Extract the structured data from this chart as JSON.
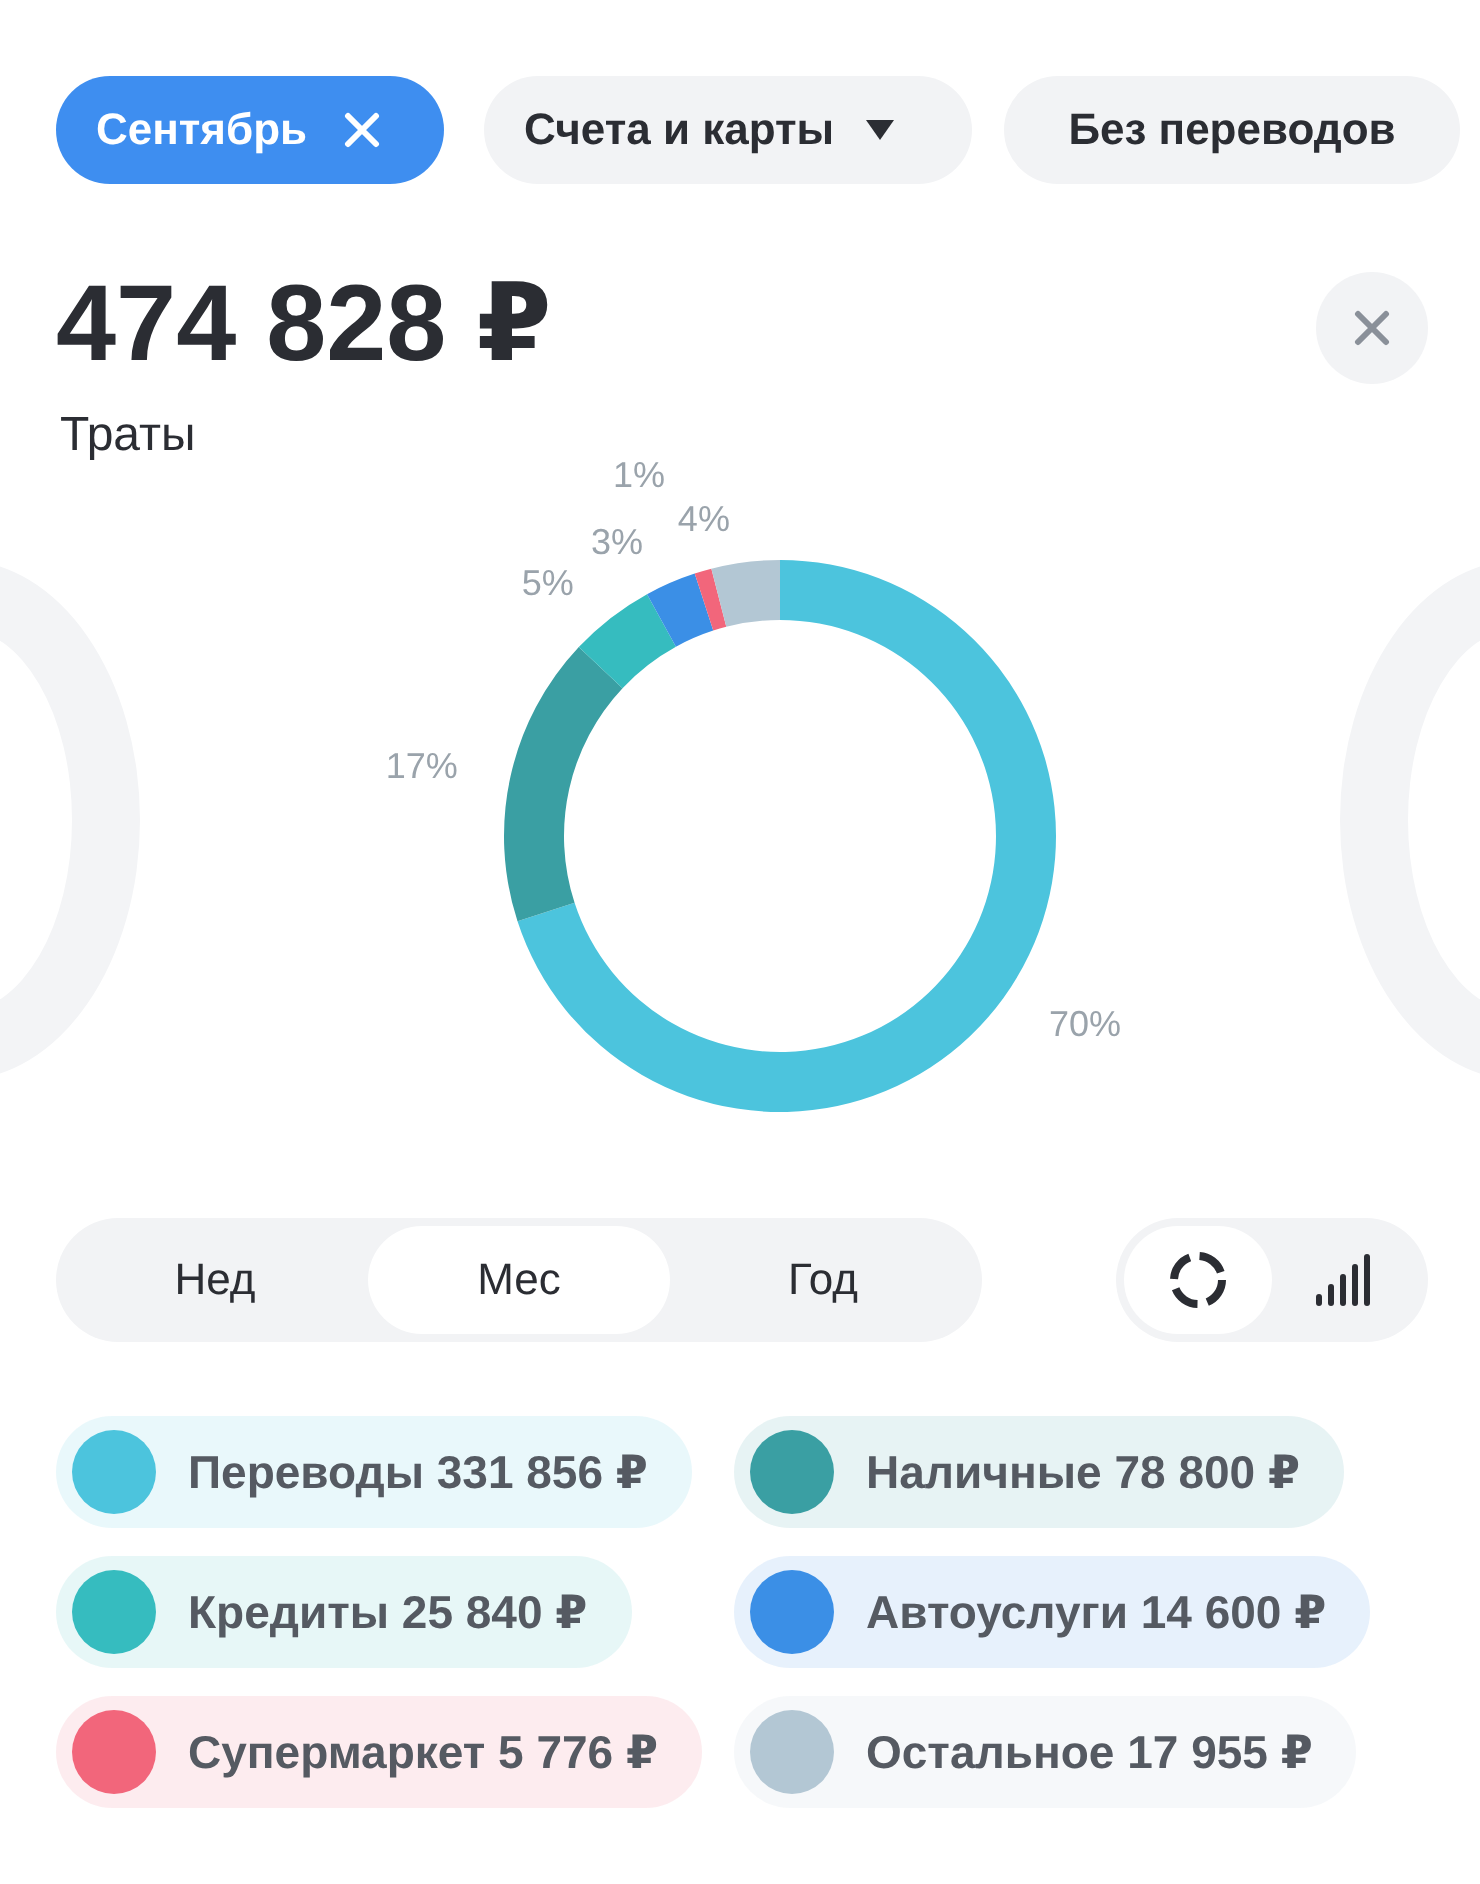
{
  "chart_data": {
    "type": "donut",
    "title": "474 828 ₽",
    "subtitle": "Траты",
    "categories": [
      "Переводы 331 856 ₽",
      "Наличные 78 800 ₽",
      "Кредиты 25 840 ₽",
      "Автоуслуги 14 600 ₽",
      "Супермаркет 5 776 ₽",
      "Остальное 17 955 ₽"
    ],
    "values": [
      70,
      17,
      5,
      3,
      1,
      4
    ],
    "colors": [
      "#4cc4dd",
      "#3a9fa3",
      "#36bcbf",
      "#3b8fe6",
      "#f2667b",
      "#b3c7d4"
    ],
    "value_labels": [
      "70%",
      "17%",
      "5%",
      "3%",
      "1%",
      "4%"
    ],
    "legend": "bottom",
    "annotations": [
      "Сентябрь",
      "Счета и карты",
      "Без переводов",
      "Нед",
      "Мес",
      "Год"
    ]
  }
}
